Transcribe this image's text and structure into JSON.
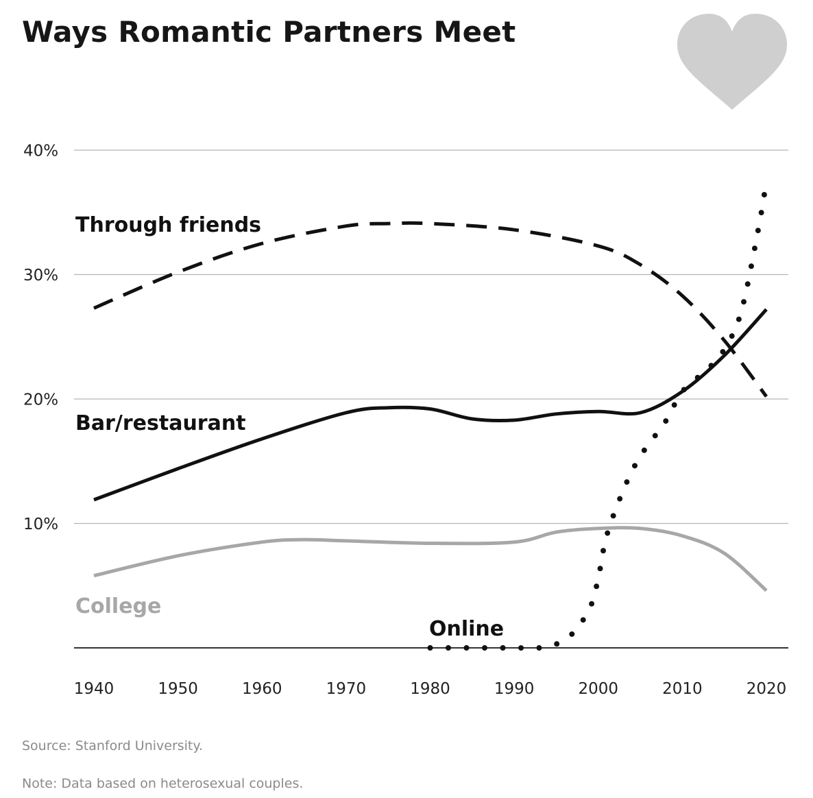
{
  "chart_data": {
    "type": "line",
    "title": "Ways Romantic Partners Meet",
    "xlabel": "",
    "ylabel": "",
    "xlim": [
      1940,
      2020
    ],
    "ylim": [
      0,
      40
    ],
    "x_ticks": [
      1940,
      1950,
      1960,
      1970,
      1980,
      1990,
      2000,
      2010,
      2020
    ],
    "y_ticks": [
      10,
      20,
      30,
      40
    ],
    "y_tick_labels": [
      "10%",
      "20%",
      "30%",
      "40%"
    ],
    "grid": true,
    "legend": "direct labels",
    "series": [
      {
        "name": "Through friends",
        "style": "dashed",
        "color": "#111111",
        "x": [
          1940,
          1950,
          1960,
          1970,
          1975,
          1980,
          1990,
          2000,
          2005,
          2010,
          2015,
          2020
        ],
        "values": [
          27.3,
          30.2,
          32.5,
          33.9,
          34.1,
          34.1,
          33.6,
          32.3,
          30.8,
          28.3,
          24.7,
          20.2
        ]
      },
      {
        "name": "Bar/restaurant",
        "style": "solid",
        "color": "#111111",
        "x": [
          1940,
          1950,
          1960,
          1970,
          1975,
          1980,
          1985,
          1990,
          1995,
          2000,
          2005,
          2010,
          2015,
          2020
        ],
        "values": [
          11.9,
          14.4,
          16.8,
          18.9,
          19.3,
          19.2,
          18.4,
          18.3,
          18.8,
          19.0,
          18.9,
          20.6,
          23.5,
          27.2
        ]
      },
      {
        "name": "College",
        "style": "solid",
        "color": "#a7a7a9",
        "x": [
          1940,
          1950,
          1960,
          1965,
          1970,
          1980,
          1990,
          1995,
          2000,
          2005,
          2010,
          2015,
          2020
        ],
        "values": [
          5.8,
          7.4,
          8.5,
          8.7,
          8.6,
          8.4,
          8.5,
          9.3,
          9.6,
          9.6,
          9.0,
          7.6,
          4.6
        ]
      },
      {
        "name": "Online",
        "style": "dotted",
        "color": "#111111",
        "x": [
          1980,
          1985,
          1990,
          1993,
          1995,
          1997,
          1999,
          2000,
          2001,
          2003,
          2005,
          2008,
          2010,
          2013,
          2015,
          2017,
          2019,
          2020
        ],
        "values": [
          0,
          0,
          0,
          0,
          0.3,
          1.2,
          3.2,
          5.6,
          9.0,
          12.7,
          15.4,
          18.2,
          20.6,
          22.4,
          24.0,
          27.0,
          33.5,
          37.5
        ]
      }
    ]
  },
  "footer": {
    "source": "Source: Stanford University.",
    "note": "Note: Data based on heterosexual couples."
  },
  "decoration": {
    "heart_color": "#cfcfcf",
    "icon": "heart-icon"
  }
}
